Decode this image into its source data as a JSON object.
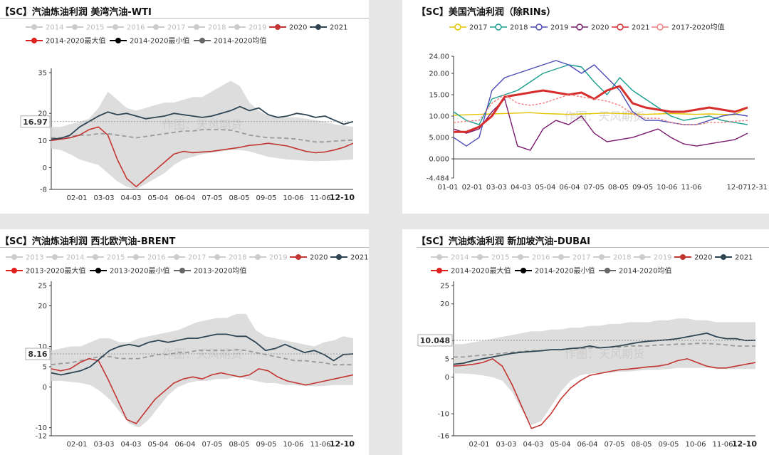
{
  "watermark": "作图：天风期货",
  "colors": {
    "y2020": "#c23531",
    "y2021": "#2f4554",
    "band": "#d9d9d9",
    "avg": "#9a9a9a",
    "legend_off": "#cccccc",
    "max": "#e01f1f",
    "min": "#000000",
    "mean": "#666666",
    "us2017": "#e5c400",
    "us2018": "#1a9e8f",
    "us2019": "#4b4bb5",
    "us2020": "#7a1a6e",
    "us2021": "#d62d2d",
    "us_avg": "#f08080"
  },
  "chart_data": [
    {
      "id": "wti",
      "type": "line",
      "title": "【SC】汽油炼油利润 美湾汽油-WTI",
      "legend_row1": [
        "2014",
        "2015",
        "2016",
        "2017",
        "2018",
        "2019",
        "2020",
        "2021"
      ],
      "legend_row2": [
        "2014-2020最大值",
        "2014-2020最小值",
        "2014-2020均值"
      ],
      "x_ticks": [
        "02-01",
        "03-03",
        "04-03",
        "05-04",
        "06-04",
        "07-05",
        "08-05",
        "09-05",
        "10-06",
        "11-06"
      ],
      "end_label": "12-10",
      "y_ticks": [
        35,
        20,
        10,
        0,
        -8
      ],
      "ylim": [
        -8,
        35
      ],
      "current_value": "16.97",
      "series": [
        {
          "name": "2021",
          "values": [
            10.5,
            10.8,
            12,
            15,
            17,
            19,
            20.5,
            19.5,
            20,
            19,
            18,
            18.5,
            19,
            20,
            19.5,
            19,
            18.5,
            19,
            20,
            21,
            22.5,
            21,
            22,
            19.5,
            18.5,
            19,
            20,
            19.5,
            18.5,
            19,
            17.5,
            16,
            17
          ]
        },
        {
          "name": "2020",
          "values": [
            10,
            10.5,
            11,
            12,
            14,
            15,
            12,
            3,
            -4,
            -7,
            -4,
            -1,
            2,
            5,
            6,
            5.5,
            5.8,
            6,
            6.5,
            7,
            7.5,
            8.2,
            8.5,
            9,
            8.5,
            8,
            7,
            6,
            5.5,
            5.8,
            6.5,
            7.5,
            9
          ]
        },
        {
          "name": "2014-2020均值",
          "values": [
            11,
            11,
            11.5,
            12,
            12,
            12.5,
            12.5,
            12,
            11.5,
            11,
            11.5,
            12,
            12.5,
            13,
            13.5,
            13.5,
            14,
            14,
            14,
            13.8,
            13,
            12,
            11.5,
            11,
            11,
            10.8,
            10.5,
            10,
            9.5,
            9.5,
            9.8,
            10,
            10.2
          ]
        },
        {
          "name": "2014-2020最大值",
          "values": [
            15,
            15,
            16,
            17,
            18,
            22,
            28,
            25,
            22,
            21,
            22,
            23,
            24,
            24,
            25,
            26,
            26,
            28,
            30,
            32,
            30,
            24,
            21,
            19,
            19,
            18.5,
            18.5,
            18,
            17.5,
            17,
            16,
            15.5,
            15
          ]
        },
        {
          "name": "2014-2020最小值",
          "values": [
            7,
            6.5,
            5,
            3,
            2,
            1,
            -2,
            -5,
            -7,
            -8,
            -6,
            -4,
            -2,
            1,
            3,
            4,
            5,
            5.5,
            6,
            6.5,
            6.5,
            6,
            5,
            4,
            3.5,
            3,
            2.8,
            2.6,
            2.4,
            2.5,
            2.6,
            2.8,
            3
          ]
        }
      ]
    },
    {
      "id": "us",
      "type": "line",
      "title": "【SC】美国汽油利润（除RINs）",
      "legend_row1": [
        "2017",
        "2018",
        "2019",
        "2020",
        "2021",
        "2017-2020均值"
      ],
      "x_ticks": [
        "01-01",
        "02-01",
        "03-03",
        "04-03",
        "05-04",
        "06-04",
        "07-05",
        "08-05",
        "09-05",
        "10-06",
        "11-06",
        "12-07",
        "12-31"
      ],
      "y_ticks": [
        "24.00",
        "20.00",
        "15.00",
        "10.00",
        "5.000",
        "0.000",
        "-4.484"
      ],
      "ylim": [
        -4.484,
        24
      ],
      "series": [
        {
          "name": "2017",
          "values": [
            10.2,
            10.3,
            10.4,
            10.5,
            10.6,
            10.7,
            10.8,
            10.6,
            10.5,
            10.4,
            10.5,
            10.6,
            10.7,
            10.6,
            10.5,
            10.4,
            10.5,
            10.6,
            10.5,
            10.4,
            10.5,
            10.4,
            10.3,
            12
          ]
        },
        {
          "name": "2018",
          "values": [
            11,
            9,
            8,
            14,
            15,
            16,
            18,
            20,
            21,
            22,
            21.5,
            18,
            15,
            19,
            16,
            14,
            12,
            10,
            9,
            9.5,
            10,
            9,
            8.5,
            8
          ]
        },
        {
          "name": "2019",
          "values": [
            5,
            3,
            5,
            16,
            19,
            20,
            21,
            22,
            23,
            22,
            20,
            22,
            19,
            16,
            11,
            9,
            9,
            8.5,
            8,
            8,
            9,
            10,
            10.5,
            10
          ]
        },
        {
          "name": "2020",
          "values": [
            7,
            6,
            7,
            11,
            14,
            3,
            2,
            7,
            9,
            8,
            10,
            6,
            4,
            4.5,
            5,
            6,
            7,
            5,
            3.5,
            3,
            3.5,
            4,
            4.5,
            6
          ]
        },
        {
          "name": "2021",
          "values": [
            6.3,
            6.3,
            7.5,
            10,
            14.5,
            15,
            15.5,
            16,
            15.5,
            15,
            15.5,
            14,
            16,
            17,
            13,
            12,
            11.5,
            11,
            11,
            11.5,
            12,
            11.5,
            11,
            12
          ]
        },
        {
          "name": "2017-2020均值",
          "values": [
            8.5,
            8.8,
            9,
            13,
            15,
            13,
            12.5,
            13,
            14,
            15,
            14.5,
            14,
            13.5,
            12.5,
            10.5,
            9.5,
            9.5,
            8.5,
            8,
            8,
            8.5,
            8.5,
            8.8,
            9
          ]
        }
      ]
    },
    {
      "id": "brent",
      "type": "line",
      "title": "【SC】汽油炼油利润 西北欧汽油-BRENT",
      "legend_row1": [
        "2013",
        "2014",
        "2015",
        "2016",
        "2017",
        "2018",
        "2019",
        "2020",
        "2021"
      ],
      "legend_row2": [
        "2013-2020最大值",
        "2013-2020最小值",
        "2013-2020均值"
      ],
      "x_ticks": [
        "02-01",
        "03-03",
        "04-03",
        "05-04",
        "06-04",
        "07-05",
        "08-05",
        "09-05",
        "10-06",
        "11-06"
      ],
      "end_label": "12-10",
      "y_ticks": [
        25,
        20,
        10,
        5,
        0,
        -10,
        -12
      ],
      "ylim": [
        -12,
        25
      ],
      "current_value": "8.16",
      "series": [
        {
          "name": "2021",
          "values": [
            3.5,
            3,
            3.5,
            4,
            5,
            7,
            9,
            10,
            10.5,
            10,
            11,
            11.5,
            11,
            11.5,
            12,
            12,
            12.5,
            13,
            13,
            12.5,
            12.5,
            11,
            9,
            9.5,
            10.5,
            9.5,
            8.5,
            9,
            8,
            6.5,
            8,
            8.16
          ]
        },
        {
          "name": "2020",
          "values": [
            4.5,
            4,
            4.5,
            6,
            7,
            6.5,
            2,
            -3,
            -8,
            -9,
            -6,
            -3,
            -1,
            1,
            2,
            2.5,
            2,
            3,
            3.5,
            3,
            2.5,
            3,
            4.5,
            4,
            2.5,
            1.5,
            1,
            0.5,
            1,
            1.5,
            2,
            2.5,
            3
          ]
        },
        {
          "name": "2013-2020均值",
          "values": [
            5.5,
            5.8,
            6,
            6.5,
            7,
            7.5,
            7.5,
            7,
            7,
            7,
            7.5,
            8,
            8,
            8.5,
            8.5,
            9,
            9,
            9,
            9,
            9.2,
            9,
            8.5,
            8,
            7.5,
            7,
            6.5,
            6.5,
            6.2,
            6,
            5.5,
            5.5,
            5.5
          ]
        },
        {
          "name": "2013-2020最大值",
          "values": [
            9,
            9.5,
            10,
            10,
            11,
            12,
            12,
            11,
            11,
            12,
            12.5,
            13,
            13.5,
            14,
            15,
            16,
            16.5,
            17,
            17,
            18,
            18,
            14,
            12.5,
            12,
            11.5,
            11,
            10.5,
            10,
            11,
            11.5,
            12.5,
            12
          ]
        },
        {
          "name": "2013-2020最小值",
          "values": [
            1.5,
            1.5,
            1.3,
            1,
            0.5,
            -1,
            -3,
            -6,
            -9,
            -10,
            -8,
            -5,
            -2,
            0,
            1,
            1.5,
            1.5,
            2,
            2,
            2.5,
            2,
            1.5,
            1,
            1,
            0.5,
            0.5,
            0.3,
            0.2,
            0.3,
            0.5,
            0.5,
            0.5
          ]
        }
      ]
    },
    {
      "id": "dubai",
      "type": "line",
      "title": "【SC】汽油炼油利润 新加坡汽油-DUBAI",
      "legend_row1": [
        "2014",
        "2015",
        "2016",
        "2017",
        "2018",
        "2019",
        "2020",
        "2021"
      ],
      "legend_row2": [
        "2014-2020最大值",
        "2014-2020最小值",
        "2014-2020均值"
      ],
      "x_ticks": [
        "02-01",
        "03-03",
        "04-03",
        "05-04",
        "06-04",
        "07-05",
        "08-05",
        "09-05",
        "10-06",
        "11-06"
      ],
      "end_label": "12-10",
      "y_ticks": [
        25,
        20,
        10,
        5,
        0,
        -10,
        -16
      ],
      "ylim": [
        -16,
        25
      ],
      "current_value": "10.048",
      "series": [
        {
          "name": "2021",
          "values": [
            3.5,
            3.8,
            4.5,
            5,
            5.5,
            6,
            6.5,
            6.8,
            7,
            7.2,
            7.5,
            7.5,
            7.8,
            8,
            8.5,
            8,
            8.2,
            8.5,
            9,
            9.5,
            9.8,
            10,
            10.2,
            10.5,
            11,
            11.5,
            12,
            11,
            10.5,
            10.5,
            10,
            10.048
          ]
        },
        {
          "name": "2020",
          "values": [
            3,
            3.2,
            3.5,
            4,
            5,
            3,
            -2,
            -8,
            -14,
            -13,
            -10,
            -6,
            -3,
            -1,
            0.5,
            1,
            1.5,
            2,
            2.2,
            2.5,
            2.8,
            3,
            3.5,
            4.5,
            5,
            4,
            3,
            2.5,
            2.5,
            3,
            3.5,
            4
          ]
        },
        {
          "name": "2014-2020均值",
          "values": [
            5.5,
            5.5,
            5.8,
            6,
            6.2,
            6.5,
            6.8,
            7,
            7.2,
            7.2,
            7.5,
            7.5,
            7.8,
            7.8,
            8,
            8,
            8.2,
            8.2,
            8.5,
            8.5,
            8.5,
            8.8,
            8.8,
            9,
            9,
            9.2,
            9.2,
            9,
            8.8,
            8.5,
            8.5,
            8.5
          ]
        },
        {
          "name": "2014-2020最大值",
          "values": [
            9,
            9,
            9.5,
            10,
            10.5,
            11,
            11.5,
            12,
            12.5,
            12.5,
            13,
            13,
            13.5,
            13.5,
            14,
            14,
            14.5,
            14.5,
            15,
            15,
            15,
            15.5,
            15.5,
            16,
            16,
            15.5,
            15.5,
            15,
            15,
            15,
            15,
            15
          ]
        },
        {
          "name": "2014-2020最小值",
          "values": [
            1,
            1,
            0.8,
            0.5,
            0,
            -1,
            -4,
            -9,
            -13,
            -12,
            -8,
            -4,
            -1,
            0.5,
            1,
            1,
            1.2,
            1.5,
            1.5,
            1.8,
            2,
            2,
            2.2,
            2.5,
            2.5,
            2.5,
            2.5,
            2.3,
            2.2,
            2.2,
            2.2,
            2.2
          ]
        }
      ]
    }
  ]
}
